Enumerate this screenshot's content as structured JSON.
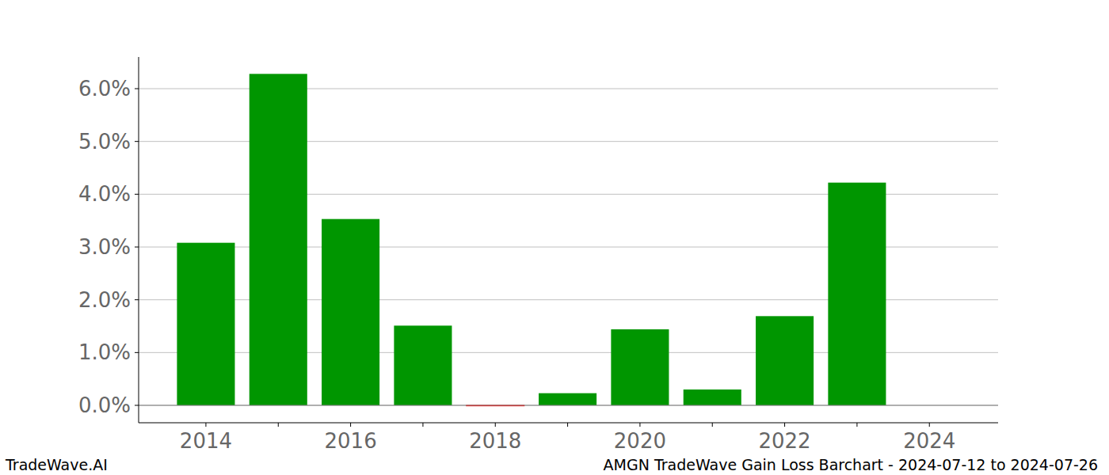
{
  "chart_data": {
    "type": "bar",
    "title": "AMGN TradeWave Gain Loss Barchart - 2024-07-12 to 2024-07-26",
    "annotations": [
      "TradeWave.AI"
    ],
    "categories": [
      "2014",
      null,
      "2016",
      null,
      "2018",
      null,
      "2020",
      null,
      "2022",
      null,
      "2024"
    ],
    "values": [
      3.08,
      6.28,
      3.53,
      1.51,
      -0.01,
      0.23,
      1.44,
      0.3,
      1.69,
      4.22,
      0
    ],
    "colors": [
      "#009600",
      "#009600",
      "#009600",
      "#009600",
      "#ff0000",
      "#009600",
      "#009600",
      "#009600",
      "#009600",
      "#009600",
      "#009600"
    ],
    "ylim": [
      -0.33,
      6.6
    ],
    "yticks": [
      {
        "value": 0,
        "label": "0.0%"
      },
      {
        "value": 1,
        "label": "1.0%"
      },
      {
        "value": 2,
        "label": "2.0%"
      },
      {
        "value": 3,
        "label": "3.0%"
      },
      {
        "value": 4,
        "label": "4.0%"
      },
      {
        "value": 5,
        "label": "5.0%"
      },
      {
        "value": 6,
        "label": "6.0%"
      }
    ],
    "grid": true
  }
}
